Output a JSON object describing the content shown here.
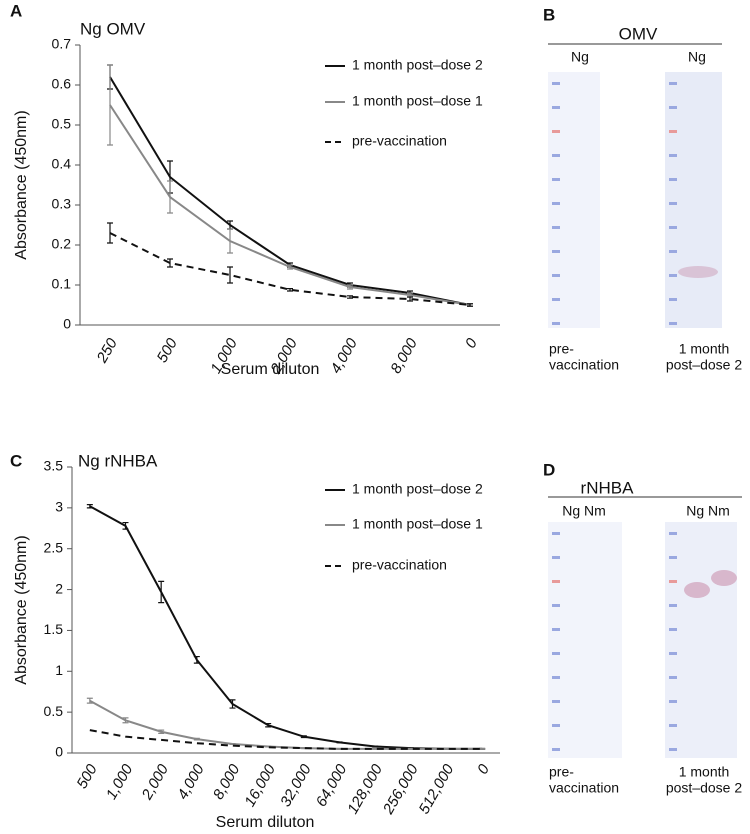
{
  "chart_data": [
    {
      "type": "line",
      "panel_label": "A",
      "title": "Ng OMV",
      "x_label": "Serum diluton",
      "y_label": "Absorbance (450nm)",
      "categories": [
        "250",
        "500",
        "1,000",
        "2,000",
        "4,000",
        "8,000",
        "0"
      ],
      "ylim": [
        0,
        0.7
      ],
      "yticks": [
        0,
        0.1,
        0.2,
        0.3,
        0.4,
        0.5,
        0.6,
        0.7
      ],
      "series": [
        {
          "name": "1 month post–dose 2",
          "color": "#111111",
          "dashed": false,
          "values": [
            0.62,
            0.37,
            0.25,
            0.15,
            0.1,
            0.08,
            0.05
          ],
          "errors": [
            0.03,
            0.04,
            0.01,
            0.005,
            0.005,
            0.005,
            0.003
          ]
        },
        {
          "name": "1 month post–dose 1",
          "color": "#888888",
          "dashed": false,
          "values": [
            0.55,
            0.32,
            0.21,
            0.145,
            0.095,
            0.075,
            0.05
          ],
          "errors": [
            0.1,
            0.04,
            0.03,
            0.005,
            0.005,
            0.005,
            0.003
          ]
        },
        {
          "name": "pre-vaccination",
          "color": "#111111",
          "dashed": true,
          "values": [
            0.23,
            0.155,
            0.125,
            0.088,
            0.07,
            0.065,
            0.05
          ],
          "errors": [
            0.025,
            0.01,
            0.02,
            0.003,
            0.003,
            0.005,
            0.003
          ]
        }
      ]
    },
    {
      "type": "line",
      "panel_label": "C",
      "title": "Ng rNHBA",
      "x_label": "Serum diluton",
      "y_label": "Absorbance (450nm)",
      "categories": [
        "500",
        "1,000",
        "2,000",
        "4,000",
        "8,000",
        "16,000",
        "32,000",
        "64,000",
        "128,000",
        "256,000",
        "512,000",
        "0"
      ],
      "ylim": [
        0,
        3.5
      ],
      "yticks": [
        0,
        0.5,
        1,
        1.5,
        2,
        2.5,
        3,
        3.5
      ],
      "series": [
        {
          "name": "1 month post–dose 2",
          "color": "#111111",
          "dashed": false,
          "values": [
            3.02,
            2.78,
            1.97,
            1.14,
            0.6,
            0.34,
            0.2,
            0.13,
            0.08,
            0.06,
            0.05,
            0.05
          ],
          "errors": [
            0.02,
            0.04,
            0.13,
            0.04,
            0.05,
            0.02,
            0.01,
            0.005,
            0.005,
            0.005,
            0.005,
            0.005
          ]
        },
        {
          "name": "1 month post–dose 1",
          "color": "#888888",
          "dashed": false,
          "values": [
            0.64,
            0.4,
            0.26,
            0.17,
            0.11,
            0.08,
            0.06,
            0.05,
            0.05,
            0.05,
            0.05,
            0.05
          ],
          "errors": [
            0.03,
            0.03,
            0.02,
            0.01,
            0.005,
            0.005,
            0.005,
            0.005,
            0.005,
            0.005,
            0.005,
            0.005
          ]
        },
        {
          "name": "pre-vaccination",
          "color": "#111111",
          "dashed": true,
          "values": [
            0.28,
            0.2,
            0.16,
            0.12,
            0.09,
            0.07,
            0.06,
            0.05,
            0.05,
            0.05,
            0.05,
            0.05
          ]
        }
      ]
    }
  ],
  "blots": [
    {
      "panel_label": "B",
      "antigen": "OMV",
      "lanes": [
        "Ng",
        "Ng"
      ],
      "samples": [
        [
          "pre-",
          "vaccination"
        ],
        [
          "1 month",
          "post–dose 2"
        ]
      ]
    },
    {
      "panel_label": "D",
      "antigen": "rNHBA",
      "lanes": [
        "Ng Nm",
        "Ng Nm"
      ],
      "samples": [
        [
          "pre-",
          "vaccination"
        ],
        [
          "1 month",
          "post–dose 2"
        ]
      ]
    }
  ]
}
